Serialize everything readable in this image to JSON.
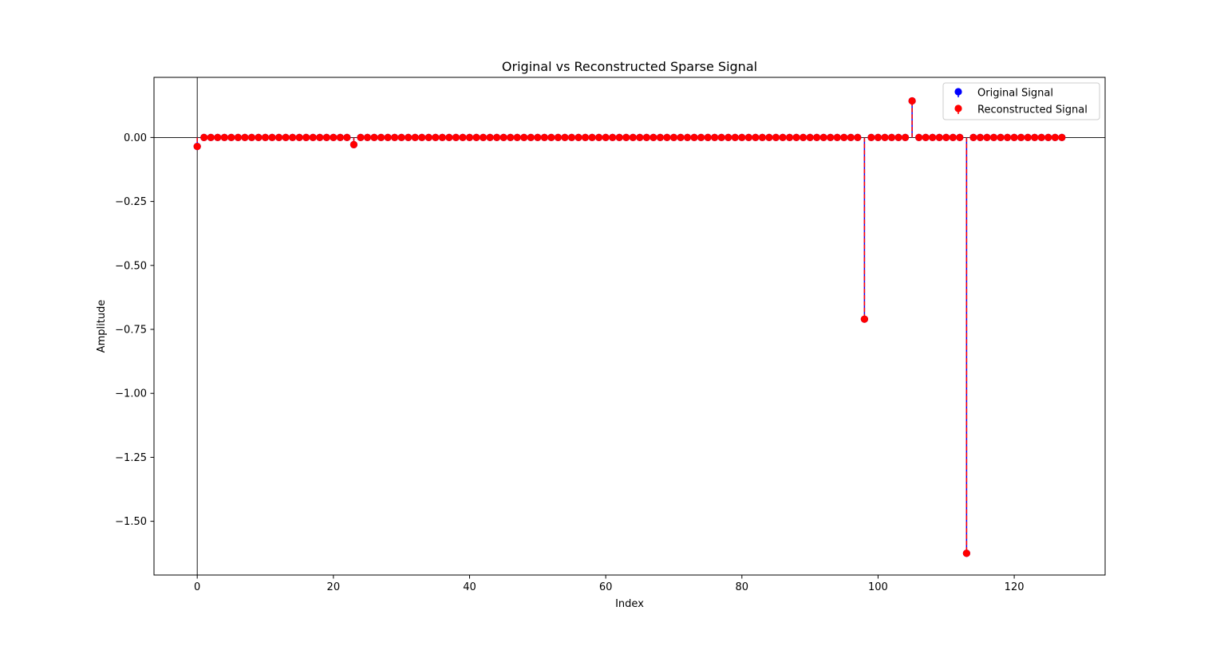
{
  "chart_data": {
    "type": "stem",
    "title": "Original vs Reconstructed Sparse Signal",
    "xlabel": "Index",
    "ylabel": "Amplitude",
    "xlim": [
      -6.35,
      133.35
    ],
    "ylim": [
      -1.71,
      0.235
    ],
    "xticks": [
      0,
      20,
      40,
      60,
      80,
      100,
      120
    ],
    "yticks": [
      0.0,
      -0.25,
      -0.5,
      -0.75,
      -1.0,
      -1.25,
      -1.5
    ],
    "ytick_labels": [
      "0.00",
      "−0.25",
      "−0.50",
      "−0.75",
      "−1.00",
      "−1.25",
      "−1.50"
    ],
    "length": 128,
    "grid": false,
    "legend_position": "top-right",
    "series": [
      {
        "name": "Original Signal",
        "color": "#0000ff",
        "marker": "circle",
        "nonzero": [
          {
            "x": 0,
            "y": -0.035
          },
          {
            "x": 23,
            "y": -0.028
          },
          {
            "x": 98,
            "y": -0.71
          },
          {
            "x": 105,
            "y": 0.143
          },
          {
            "x": 113,
            "y": -1.625
          }
        ]
      },
      {
        "name": "Reconstructed Signal",
        "color": "#ff0000",
        "marker": "circle",
        "line_style": "dashed",
        "nonzero": [
          {
            "x": 0,
            "y": -0.035
          },
          {
            "x": 23,
            "y": -0.028
          },
          {
            "x": 98,
            "y": -0.71
          },
          {
            "x": 105,
            "y": 0.143
          },
          {
            "x": 113,
            "y": -1.625
          }
        ]
      }
    ]
  }
}
